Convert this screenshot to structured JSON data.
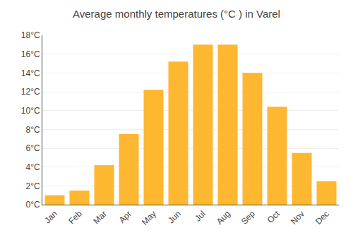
{
  "chart_data": {
    "type": "bar",
    "title": "Average monthly temperatures (°C ) in Varel",
    "categories": [
      "Jan",
      "Feb",
      "Mar",
      "Apr",
      "May",
      "Jun",
      "Jul",
      "Aug",
      "Sep",
      "Oct",
      "Nov",
      "Dec"
    ],
    "values": [
      1.0,
      1.5,
      4.2,
      7.5,
      12.2,
      15.2,
      17.0,
      17.0,
      14.0,
      10.4,
      5.5,
      2.5
    ],
    "color": "#FDB731",
    "ylim": [
      0,
      18
    ],
    "yticks": [
      {
        "value": 0,
        "label": "0°C"
      },
      {
        "value": 2,
        "label": "2°C"
      },
      {
        "value": 4,
        "label": "4°C"
      },
      {
        "value": 6,
        "label": "6°C"
      },
      {
        "value": 8,
        "label": "8°C"
      },
      {
        "value": 10,
        "label": "10°C"
      },
      {
        "value": 12,
        "label": "12°C"
      },
      {
        "value": 14,
        "label": "14°C"
      },
      {
        "value": 16,
        "label": "16°C"
      },
      {
        "value": 18,
        "label": "18°C"
      }
    ],
    "grid": true
  }
}
